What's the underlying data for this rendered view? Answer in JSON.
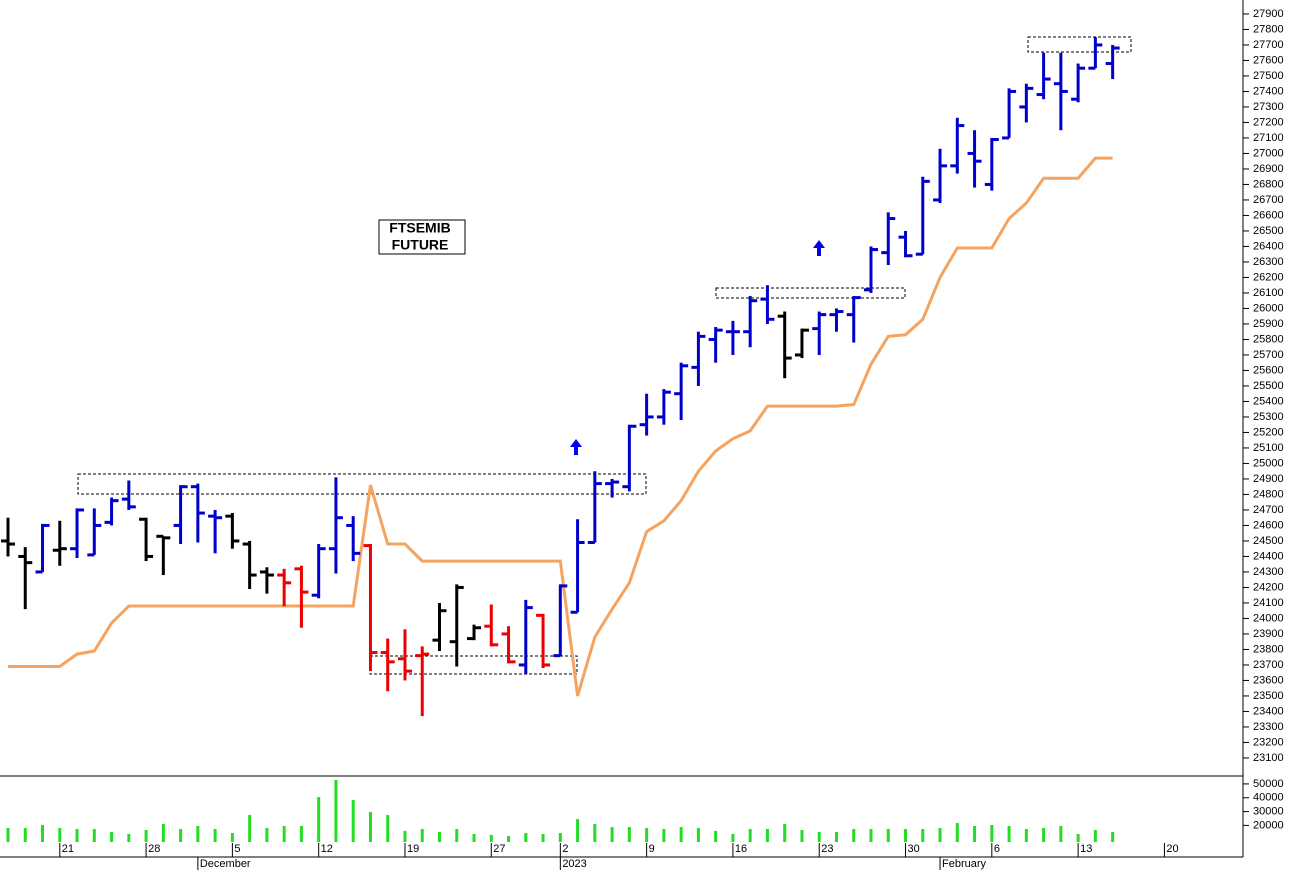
{
  "chart_data": {
    "type": "ohlc",
    "title_lines": [
      "FTSEMIB",
      "FUTURE"
    ],
    "categories": [
      null,
      null,
      null,
      "21",
      null,
      null,
      null,
      null,
      "28",
      null,
      null,
      null,
      null,
      "5",
      null,
      null,
      null,
      null,
      "12",
      null,
      null,
      null,
      null,
      "19",
      null,
      null,
      null,
      null,
      "27",
      null,
      null,
      null,
      "2",
      null,
      null,
      null,
      null,
      "9",
      null,
      null,
      null,
      null,
      "16",
      null,
      null,
      null,
      null,
      "23",
      null,
      null,
      null,
      null,
      "30",
      null,
      null,
      null,
      null,
      "6",
      null,
      null,
      null,
      null,
      "13",
      null,
      null,
      null,
      null,
      "20",
      null,
      null,
      null,
      null
    ],
    "month_labels": [
      {
        "value": 11,
        "label": "December"
      },
      {
        "value": 32,
        "label": "2023"
      },
      {
        "value": 54,
        "label": "February"
      }
    ],
    "open": [
      24500,
      24400,
      24300,
      24440,
      24450,
      24410,
      24620,
      24770,
      24640,
      24530,
      24600,
      24850,
      24660,
      24660,
      24480,
      24300,
      24280,
      24320,
      24150,
      24450,
      24600,
      24470,
      23780,
      23740,
      23760,
      23860,
      23850,
      23870,
      23950,
      23900,
      23700,
      24020,
      23760,
      24040,
      24490,
      24870,
      24850,
      25250,
      25300,
      25450,
      25620,
      25800,
      25850,
      25850,
      26060,
      25950,
      25700,
      25870,
      25960,
      25960,
      26120,
      26360,
      26460,
      26350,
      26700,
      26920,
      27000,
      26800,
      27100,
      27300,
      27380,
      27450,
      27350,
      27550,
      27580,
      null,
      null,
      null,
      null,
      null,
      null,
      null
    ],
    "high": [
      24650,
      24460,
      24610,
      24630,
      24710,
      24710,
      24780,
      24890,
      24650,
      24530,
      24860,
      24870,
      24700,
      24680,
      24500,
      24330,
      24320,
      24340,
      24480,
      24910,
      24660,
      24480,
      23870,
      23930,
      23820,
      24100,
      24220,
      23960,
      24090,
      23950,
      24120,
      24030,
      24220,
      24640,
      24950,
      24900,
      25250,
      25450,
      25480,
      25650,
      25850,
      25880,
      25920,
      26080,
      26150,
      25980,
      25870,
      25980,
      26000,
      26080,
      26400,
      26620,
      26500,
      26850,
      27030,
      27230,
      27150,
      27100,
      27420,
      27450,
      27650,
      27650,
      27580,
      27750,
      27700,
      null,
      null,
      null,
      null,
      null,
      null,
      null
    ],
    "low": [
      24400,
      24060,
      24300,
      24340,
      24390,
      24410,
      24600,
      24700,
      24370,
      24280,
      24480,
      24490,
      24420,
      24450,
      24190,
      24160,
      24080,
      23940,
      24130,
      24290,
      24370,
      23660,
      23530,
      23600,
      23370,
      23790,
      23690,
      23860,
      23820,
      23710,
      23640,
      23680,
      23760,
      24040,
      24490,
      24780,
      24820,
      25180,
      25250,
      25280,
      25500,
      25650,
      25700,
      25750,
      25900,
      25550,
      25680,
      25700,
      25850,
      25780,
      26100,
      26280,
      26330,
      26350,
      26680,
      26870,
      26780,
      26760,
      27100,
      27200,
      27350,
      27150,
      27330,
      27550,
      27480,
      null,
      null,
      null,
      null,
      null,
      null,
      null
    ],
    "close": [
      24480,
      24360,
      24600,
      24450,
      24700,
      24600,
      24760,
      24720,
      24400,
      24520,
      24850,
      24680,
      24650,
      24500,
      24280,
      24280,
      24230,
      24170,
      24450,
      24650,
      24420,
      23780,
      23720,
      23660,
      23770,
      24050,
      24200,
      23940,
      23830,
      23720,
      24070,
      23700,
      24210,
      24490,
      24870,
      24880,
      25240,
      25300,
      25460,
      25630,
      25820,
      25860,
      25850,
      26050,
      25930,
      25680,
      25860,
      25960,
      25980,
      26070,
      26380,
      26580,
      26340,
      26820,
      26920,
      27180,
      26950,
      27090,
      27400,
      27420,
      27480,
      27400,
      27550,
      27700,
      27680,
      null,
      null,
      null,
      null,
      null,
      null,
      null
    ],
    "bar_colors": [
      "#000000",
      "#000000",
      "#0000cc",
      "#000000",
      "#0000cc",
      "#0000cc",
      "#0000cc",
      "#0000cc",
      "#000000",
      "#000000",
      "#0000cc",
      "#0000cc",
      "#0000cc",
      "#000000",
      "#000000",
      "#000000",
      "#ee0000",
      "#ee0000",
      "#0000cc",
      "#0000cc",
      "#0000cc",
      "#ee0000",
      "#ee0000",
      "#ee0000",
      "#ee0000",
      "#000000",
      "#000000",
      "#000000",
      "#ee0000",
      "#ee0000",
      "#0000cc",
      "#ee0000",
      "#0000cc",
      "#0000cc",
      "#0000cc",
      "#0000cc",
      "#0000cc",
      "#0000cc",
      "#0000cc",
      "#0000cc",
      "#0000cc",
      "#0000cc",
      "#0000cc",
      "#0000cc",
      "#0000cc",
      "#000000",
      "#000000",
      "#0000cc",
      "#0000cc",
      "#0000cc",
      "#0000cc",
      "#0000cc",
      "#0000cc",
      "#0000cc",
      "#0000cc",
      "#0000cc",
      "#0000cc",
      "#0000cc",
      "#0000cc",
      "#0000cc",
      "#0000cc",
      "#0000cc",
      "#0000cc",
      "#0000cc",
      "#0000cc",
      null,
      null,
      null,
      null,
      null,
      null,
      null
    ],
    "stop_line": {
      "color": "#f4a460",
      "values": [
        23690,
        23690,
        23690,
        23690,
        23770,
        23790,
        23970,
        24080,
        24080,
        24080,
        24080,
        24080,
        24080,
        24080,
        24080,
        24080,
        24080,
        24080,
        24080,
        24080,
        24080,
        24860,
        24480,
        24480,
        24370,
        24370,
        24370,
        24370,
        24370,
        24370,
        24370,
        24370,
        24370,
        23500,
        23880,
        24060,
        24230,
        24560,
        24630,
        24760,
        24950,
        25080,
        25160,
        25210,
        25370,
        25370,
        25370,
        25370,
        25370,
        25380,
        25640,
        25820,
        25830,
        25930,
        26200,
        26390,
        26390,
        26390,
        26580,
        26680,
        26840,
        26840,
        26840,
        26970,
        26970,
        null,
        null,
        null,
        null,
        null,
        null,
        null
      ]
    },
    "ylim": [
      22990,
      27990
    ],
    "yticks": [
      23100,
      23200,
      23300,
      23400,
      23500,
      23600,
      23700,
      23800,
      23900,
      24000,
      24100,
      24200,
      24300,
      24400,
      24500,
      24600,
      24700,
      24800,
      24900,
      25000,
      25100,
      25200,
      25300,
      25400,
      25500,
      25600,
      25700,
      25800,
      25900,
      26000,
      26100,
      26200,
      26300,
      26400,
      26500,
      26600,
      26700,
      26800,
      26900,
      27000,
      27100,
      27200,
      27300,
      27400,
      27500,
      27600,
      27700,
      27800,
      27900
    ],
    "volume": {
      "color": "#22dd22",
      "ylim": [
        8000,
        55000
      ],
      "yticks": [
        20000,
        30000,
        40000,
        50000
      ],
      "values": [
        18100,
        18100,
        20300,
        18100,
        17400,
        17400,
        15200,
        13800,
        16700,
        21000,
        17400,
        19600,
        17400,
        14500,
        27500,
        18100,
        19600,
        19600,
        40500,
        52800,
        38400,
        29700,
        27500,
        16000,
        17400,
        15200,
        17400,
        13800,
        13100,
        12300,
        14500,
        13800,
        14500,
        24600,
        21000,
        18800,
        18800,
        18100,
        17400,
        18800,
        18100,
        16000,
        13800,
        17400,
        17400,
        21000,
        16700,
        15200,
        15200,
        17400,
        17400,
        17400,
        17400,
        17400,
        18100,
        21700,
        19600,
        20300,
        19600,
        17400,
        18100,
        19600,
        13800,
        16700,
        15200,
        null,
        null,
        null,
        null,
        null,
        null,
        null
      ]
    }
  }
}
